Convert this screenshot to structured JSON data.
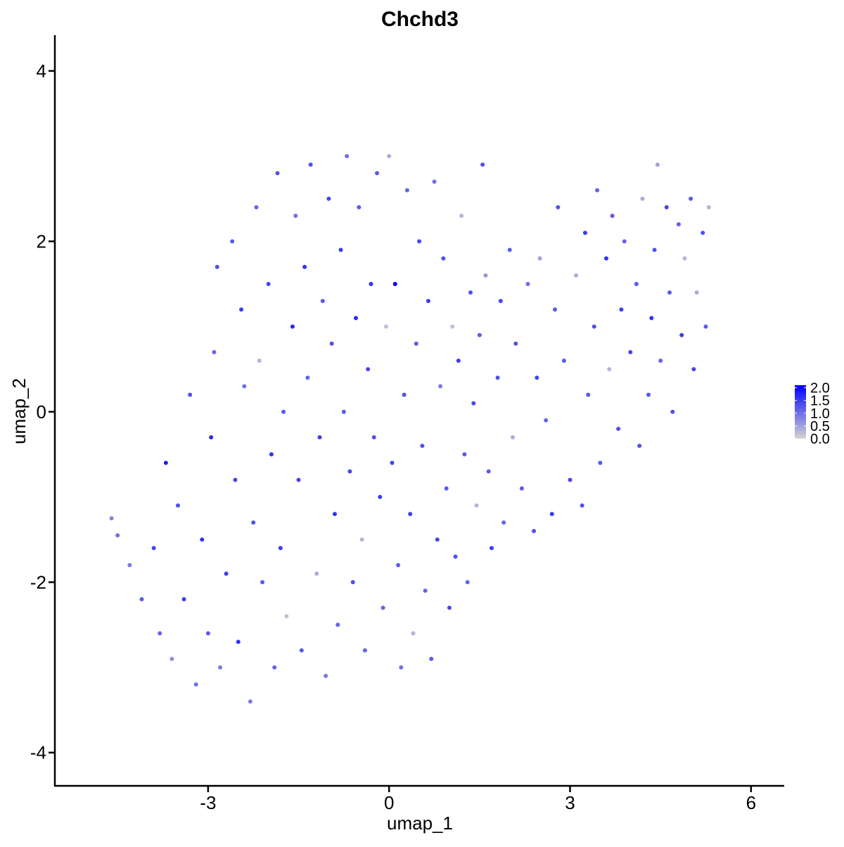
{
  "chart_data": {
    "type": "scatter",
    "title": "Chchd3",
    "x_label": "umap_1",
    "y_label": "umap_2",
    "xlim": [
      -5.54,
      6.55
    ],
    "ylim": [
      -4.39,
      4.42
    ],
    "xticks": [
      -3,
      0,
      3,
      6
    ],
    "yticks": [
      -4,
      -2,
      0,
      2,
      4
    ],
    "x": [
      -4.6,
      -4.5,
      -4.3,
      -4.1,
      -3.9,
      -3.8,
      -3.7,
      -3.6,
      -3.5,
      -3.4,
      -3.3,
      -3.2,
      -3.1,
      -3.0,
      -2.95,
      -2.9,
      -2.85,
      -2.8,
      -2.7,
      -2.6,
      -2.55,
      -2.5,
      -2.45,
      -2.4,
      -2.3,
      -2.25,
      -2.2,
      -2.15,
      -2.1,
      -2.0,
      -1.95,
      -1.9,
      -1.85,
      -1.8,
      -1.75,
      -1.7,
      -1.6,
      -1.55,
      -1.5,
      -1.45,
      -1.4,
      -1.35,
      -1.3,
      -1.2,
      -1.15,
      -1.1,
      -1.05,
      -1.0,
      -0.95,
      -0.9,
      -0.85,
      -0.8,
      -0.75,
      -0.7,
      -0.65,
      -0.6,
      -0.55,
      -0.5,
      -0.45,
      -0.4,
      -0.35,
      -0.3,
      -0.25,
      -0.2,
      -0.15,
      -0.1,
      -0.05,
      0.0,
      0.05,
      0.1,
      0.15,
      0.2,
      0.25,
      0.3,
      0.35,
      0.4,
      0.45,
      0.5,
      0.55,
      0.6,
      0.65,
      0.7,
      0.75,
      0.8,
      0.85,
      0.9,
      0.95,
      1.0,
      1.05,
      1.1,
      1.15,
      1.2,
      1.25,
      1.3,
      1.35,
      1.4,
      1.45,
      1.5,
      1.55,
      1.6,
      1.65,
      1.7,
      1.8,
      1.85,
      1.9,
      2.0,
      2.05,
      2.1,
      2.2,
      2.3,
      2.4,
      2.45,
      2.5,
      2.6,
      2.7,
      2.75,
      2.8,
      2.9,
      3.0,
      3.1,
      3.2,
      3.25,
      3.3,
      3.4,
      3.45,
      3.5,
      3.6,
      3.65,
      3.7,
      3.8,
      3.85,
      3.9,
      4.0,
      4.1,
      4.15,
      4.2,
      4.3,
      4.35,
      4.4,
      4.45,
      4.5,
      4.6,
      4.65,
      4.7,
      4.8,
      4.85,
      4.9,
      5.0,
      5.05,
      5.1,
      5.2,
      5.25,
      5.3
    ],
    "values": [
      -1.25,
      -1.45,
      -1.8,
      -2.2,
      -1.6,
      -2.6,
      -0.6,
      -2.9,
      -1.1,
      -2.2,
      0.2,
      -3.2,
      -1.5,
      -2.6,
      -0.3,
      0.7,
      1.7,
      -3.0,
      -1.9,
      2.0,
      -0.8,
      -2.7,
      1.2,
      0.3,
      -3.4,
      -1.3,
      2.4,
      0.6,
      -2.0,
      1.5,
      -0.5,
      -3.0,
      2.8,
      -1.6,
      0.0,
      -2.4,
      1.0,
      2.3,
      -0.8,
      -2.8,
      1.7,
      0.4,
      2.9,
      -1.9,
      -0.3,
      1.3,
      -3.1,
      2.5,
      0.8,
      -1.2,
      -2.5,
      1.9,
      0.0,
      3.0,
      -0.7,
      -2.0,
      1.1,
      2.4,
      -1.5,
      -2.8,
      0.5,
      1.5,
      -0.3,
      2.8,
      -1.0,
      -2.3,
      1.0,
      3.0,
      -0.6,
      1.5,
      -1.8,
      -3.0,
      0.2,
      2.6,
      -1.2,
      -2.6,
      0.8,
      2.0,
      -0.4,
      -2.1,
      1.3,
      -2.9,
      2.7,
      -1.5,
      0.3,
      1.8,
      -0.9,
      -2.3,
      1.0,
      -1.7,
      0.6,
      2.3,
      -0.5,
      -2.0,
      1.4,
      0.1,
      -1.1,
      0.9,
      2.9,
      1.6,
      -0.7,
      -1.6,
      0.4,
      1.3,
      -1.3,
      1.9,
      -0.3,
      0.8,
      -0.9,
      1.5,
      -1.4,
      0.4,
      1.8,
      -0.1,
      -1.2,
      1.2,
      2.4,
      0.6,
      -0.8,
      1.6,
      -1.1,
      2.1,
      0.2,
      1.0,
      2.6,
      -0.6,
      1.8,
      0.5,
      2.3,
      -0.2,
      1.2,
      2.0,
      0.7,
      1.5,
      -0.4,
      2.5,
      0.2,
      1.1,
      1.9,
      2.9,
      0.6,
      2.4,
      1.4,
      0.0,
      2.2,
      0.9,
      1.8,
      2.5,
      0.5,
      1.4,
      2.1,
      1.0,
      2.4
    ],
    "expression": [
      0.8,
      1.0,
      0.9,
      1.2,
      1.4,
      1.1,
      1.8,
      0.7,
      1.3,
      1.5,
      1.3,
      1.0,
      1.6,
      1.2,
      1.7,
      1.1,
      1.3,
      0.9,
      1.5,
      1.2,
      1.4,
      1.6,
      1.5,
      1.0,
      0.9,
      1.3,
      1.1,
      0.3,
      1.2,
      1.4,
      1.6,
      1.1,
      1.3,
      1.5,
      1.2,
      0.2,
      1.7,
      1.0,
      1.4,
      1.2,
      1.6,
      1.1,
      1.3,
      0.4,
      1.5,
      1.2,
      0.9,
      1.4,
      1.3,
      1.6,
      1.1,
      1.5,
      1.2,
      1.0,
      1.4,
      1.3,
      1.7,
      1.2,
      0.3,
      1.1,
      1.4,
      1.6,
      1.3,
      1.2,
      1.5,
      1.1,
      0.2,
      0.4,
      1.4,
      2.1,
      1.2,
      1.0,
      1.3,
      1.1,
      1.5,
      0.3,
      1.2,
      1.4,
      1.3,
      1.1,
      1.5,
      1.2,
      1.0,
      1.4,
      0.9,
      1.3,
      1.2,
      1.4,
      0.2,
      1.3,
      1.5,
      0.3,
      1.2,
      1.1,
      1.3,
      1.4,
      0.3,
      1.2,
      1.3,
      0.6,
      1.2,
      1.5,
      1.3,
      1.4,
      1.1,
      1.2,
      0.4,
      1.3,
      1.2,
      1.0,
      1.3,
      1.4,
      0.5,
      1.1,
      1.5,
      1.2,
      1.3,
      1.2,
      1.4,
      0.4,
      1.3,
      1.5,
      1.2,
      1.3,
      1.1,
      1.2,
      1.6,
      0.3,
      1.2,
      1.3,
      1.5,
      1.1,
      1.4,
      1.2,
      1.3,
      0.4,
      1.2,
      1.6,
      1.3,
      0.5,
      1.1,
      1.4,
      1.2,
      1.3,
      1.1,
      1.5,
      0.3,
      1.2,
      1.4,
      0.4,
      1.3,
      1.2,
      0.3
    ],
    "colorbar": {
      "colors": [
        "#d3d3d3",
        "#0000ff"
      ],
      "lim": [
        0,
        2.1
      ],
      "ticks": [
        {
          "value": 0,
          "label": "0.0"
        },
        0.5,
        {
          "value": 1,
          "label": "1.0"
        },
        1.5,
        {
          "value": 2,
          "label": "2.0"
        }
      ]
    }
  }
}
